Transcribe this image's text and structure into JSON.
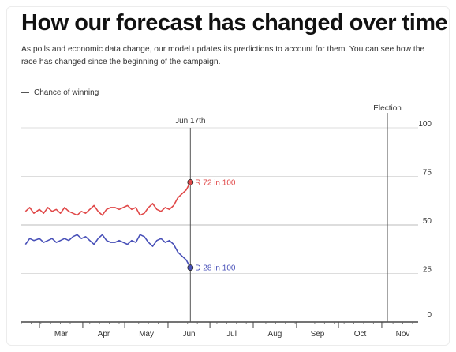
{
  "header": {
    "title": "How our forecast has changed over time",
    "subtitle": "As polls and economic data change, our model updates its predictions to account for them. You can see how the race has changed since the beginning of the campaign."
  },
  "legend": {
    "label": "Chance of winning"
  },
  "colors": {
    "republican": "#e04848",
    "democrat": "#4850b8",
    "axis": "#222222",
    "grid": "#dddddd"
  },
  "chart_data": {
    "type": "line",
    "title": "How our forecast has changed over time",
    "xlabel": "",
    "ylabel": "",
    "ylim": [
      0,
      100
    ],
    "yticks": [
      0,
      25,
      50,
      75,
      100
    ],
    "month_labels": [
      "Mar",
      "Apr",
      "May",
      "Jun",
      "Jul",
      "Aug",
      "Sep",
      "Oct",
      "Nov"
    ],
    "grid": true,
    "legend_position": "top-left",
    "annotations": [
      {
        "label": "Jun 17th",
        "date": "2024-06-17"
      },
      {
        "label": "Election",
        "date": "2024-11-05"
      }
    ],
    "series": [
      {
        "name": "R",
        "end_label": "R 72 in 100",
        "color": "#e04848",
        "points": [
          [
            "2024-02-20",
            57
          ],
          [
            "2024-02-23",
            59
          ],
          [
            "2024-02-26",
            56
          ],
          [
            "2024-03-01",
            58
          ],
          [
            "2024-03-04",
            56
          ],
          [
            "2024-03-07",
            59
          ],
          [
            "2024-03-10",
            57
          ],
          [
            "2024-03-13",
            58
          ],
          [
            "2024-03-16",
            56
          ],
          [
            "2024-03-19",
            59
          ],
          [
            "2024-03-22",
            57
          ],
          [
            "2024-03-25",
            56
          ],
          [
            "2024-03-28",
            55
          ],
          [
            "2024-03-31",
            57
          ],
          [
            "2024-04-03",
            56
          ],
          [
            "2024-04-06",
            58
          ],
          [
            "2024-04-09",
            60
          ],
          [
            "2024-04-12",
            57
          ],
          [
            "2024-04-15",
            55
          ],
          [
            "2024-04-18",
            58
          ],
          [
            "2024-04-21",
            59
          ],
          [
            "2024-04-24",
            59
          ],
          [
            "2024-04-27",
            58
          ],
          [
            "2024-04-30",
            59
          ],
          [
            "2024-05-03",
            60
          ],
          [
            "2024-05-06",
            58
          ],
          [
            "2024-05-09",
            59
          ],
          [
            "2024-05-12",
            55
          ],
          [
            "2024-05-15",
            56
          ],
          [
            "2024-05-18",
            59
          ],
          [
            "2024-05-21",
            61
          ],
          [
            "2024-05-24",
            58
          ],
          [
            "2024-05-27",
            57
          ],
          [
            "2024-05-30",
            59
          ],
          [
            "2024-06-02",
            58
          ],
          [
            "2024-06-05",
            60
          ],
          [
            "2024-06-08",
            64
          ],
          [
            "2024-06-11",
            66
          ],
          [
            "2024-06-14",
            68
          ],
          [
            "2024-06-17",
            72
          ]
        ]
      },
      {
        "name": "D",
        "end_label": "D 28 in 100",
        "color": "#4850b8",
        "points": [
          [
            "2024-02-20",
            40
          ],
          [
            "2024-02-23",
            43
          ],
          [
            "2024-02-26",
            42
          ],
          [
            "2024-03-01",
            43
          ],
          [
            "2024-03-04",
            41
          ],
          [
            "2024-03-07",
            42
          ],
          [
            "2024-03-10",
            43
          ],
          [
            "2024-03-13",
            41
          ],
          [
            "2024-03-16",
            42
          ],
          [
            "2024-03-19",
            43
          ],
          [
            "2024-03-22",
            42
          ],
          [
            "2024-03-25",
            44
          ],
          [
            "2024-03-28",
            45
          ],
          [
            "2024-03-31",
            43
          ],
          [
            "2024-04-03",
            44
          ],
          [
            "2024-04-06",
            42
          ],
          [
            "2024-04-09",
            40
          ],
          [
            "2024-04-12",
            43
          ],
          [
            "2024-04-15",
            45
          ],
          [
            "2024-04-18",
            42
          ],
          [
            "2024-04-21",
            41
          ],
          [
            "2024-04-24",
            41
          ],
          [
            "2024-04-27",
            42
          ],
          [
            "2024-04-30",
            41
          ],
          [
            "2024-05-03",
            40
          ],
          [
            "2024-05-06",
            42
          ],
          [
            "2024-05-09",
            41
          ],
          [
            "2024-05-12",
            45
          ],
          [
            "2024-05-15",
            44
          ],
          [
            "2024-05-18",
            41
          ],
          [
            "2024-05-21",
            39
          ],
          [
            "2024-05-24",
            42
          ],
          [
            "2024-05-27",
            43
          ],
          [
            "2024-05-30",
            41
          ],
          [
            "2024-06-02",
            42
          ],
          [
            "2024-06-05",
            40
          ],
          [
            "2024-06-08",
            36
          ],
          [
            "2024-06-11",
            34
          ],
          [
            "2024-06-14",
            32
          ],
          [
            "2024-06-17",
            28
          ]
        ]
      }
    ]
  }
}
